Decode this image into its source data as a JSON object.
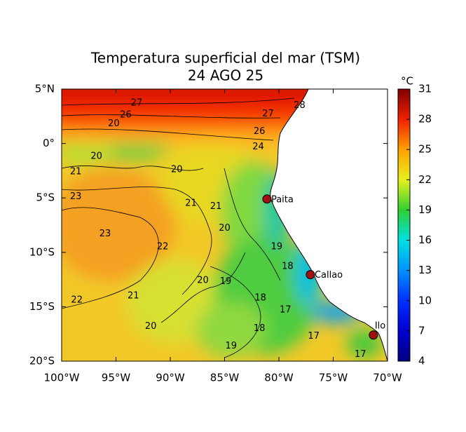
{
  "map": {
    "title": "Temperatura superficial del mar (TSM)",
    "subtitle": "24 AGO 25",
    "lonlim": [
      -100,
      -70
    ],
    "latlim": [
      -20,
      5
    ],
    "lon_ticks": [
      {
        "value": -100,
        "label": "100°W"
      },
      {
        "value": -95,
        "label": "95°W"
      },
      {
        "value": -90,
        "label": "90°W"
      },
      {
        "value": -85,
        "label": "85°W"
      },
      {
        "value": -80,
        "label": "80°W"
      },
      {
        "value": -75,
        "label": "75°W"
      },
      {
        "value": -70,
        "label": "70°W"
      }
    ],
    "lat_ticks": [
      {
        "value": 5,
        "label": "5°N"
      },
      {
        "value": 0,
        "label": "0°"
      },
      {
        "value": -5,
        "label": "5°S"
      },
      {
        "value": -10,
        "label": "10°S"
      },
      {
        "value": -15,
        "label": "15°S"
      },
      {
        "value": -20,
        "label": "20°S"
      }
    ],
    "colorbar": {
      "unit": "°C",
      "range": [
        4,
        31
      ],
      "ticks": [
        4,
        7,
        10,
        13,
        16,
        19,
        22,
        25,
        28,
        31
      ],
      "colors": [
        "#000080",
        "#0000d0",
        "#0030ff",
        "#0090ff",
        "#00e0e0",
        "#30d030",
        "#e8f020",
        "#ffa000",
        "#f02000",
        "#800000"
      ]
    },
    "cities": [
      {
        "name": "Paita",
        "lon": -81.1,
        "lat": -5.1
      },
      {
        "name": "Callao",
        "lon": -77.1,
        "lat": -12.05
      },
      {
        "name": "Ilo",
        "lon": -71.3,
        "lat": -17.6
      }
    ],
    "contour_labels": [
      {
        "value": 27,
        "lon": -93.1,
        "lat": 3.7
      },
      {
        "value": 28,
        "lon": -78.1,
        "lat": 3.5
      },
      {
        "value": 26,
        "lon": -94.1,
        "lat": 2.6
      },
      {
        "value": 27,
        "lon": -81.0,
        "lat": 2.7
      },
      {
        "value": 20,
        "lon": -95.2,
        "lat": 1.8
      },
      {
        "value": 26,
        "lon": -81.8,
        "lat": 1.1
      },
      {
        "value": 24,
        "lon": -81.9,
        "lat": -0.3
      },
      {
        "value": 20,
        "lon": -96.8,
        "lat": -1.2
      },
      {
        "value": 20,
        "lon": -89.4,
        "lat": -2.4
      },
      {
        "value": 21,
        "lon": -98.7,
        "lat": -2.6
      },
      {
        "value": 23,
        "lon": -98.7,
        "lat": -4.9
      },
      {
        "value": 21,
        "lon": -88.1,
        "lat": -5.5
      },
      {
        "value": 21,
        "lon": -85.8,
        "lat": -5.8
      },
      {
        "value": 23,
        "lon": -96.0,
        "lat": -8.3
      },
      {
        "value": 20,
        "lon": -85.0,
        "lat": -7.8
      },
      {
        "value": 22,
        "lon": -90.7,
        "lat": -9.5
      },
      {
        "value": 19,
        "lon": -80.2,
        "lat": -9.5
      },
      {
        "value": 20,
        "lon": -87.0,
        "lat": -12.6
      },
      {
        "value": 19,
        "lon": -84.9,
        "lat": -12.7
      },
      {
        "value": 18,
        "lon": -79.2,
        "lat": -11.3
      },
      {
        "value": 21,
        "lon": -93.4,
        "lat": -14.0
      },
      {
        "value": 22,
        "lon": -98.6,
        "lat": -14.4
      },
      {
        "value": 18,
        "lon": -81.7,
        "lat": -14.2
      },
      {
        "value": 17,
        "lon": -79.4,
        "lat": -15.3
      },
      {
        "value": 20,
        "lon": -91.8,
        "lat": -16.8
      },
      {
        "value": 18,
        "lon": -81.8,
        "lat": -17.0
      },
      {
        "value": 17,
        "lon": -76.8,
        "lat": -17.7
      },
      {
        "value": 19,
        "lon": -84.4,
        "lat": -18.6
      },
      {
        "value": 17,
        "lon": -72.5,
        "lat": -19.4
      }
    ]
  }
}
